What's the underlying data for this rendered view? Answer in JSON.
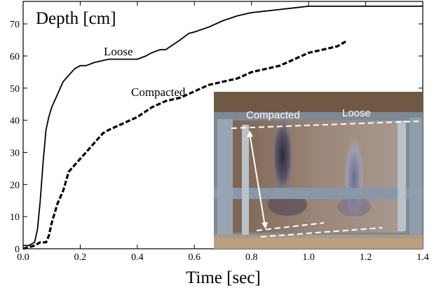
{
  "chart_data": {
    "type": "line",
    "xlabel": "Time [sec]",
    "ylabel": "Depth [cm]",
    "xlim": [
      0,
      1.4
    ],
    "ylim": [
      0,
      77
    ],
    "xticks": [
      "0.0",
      "0.2",
      "0.4",
      "0.6",
      "0.8",
      "1.0",
      "1.2",
      "1.4"
    ],
    "yticks": [
      "0",
      "10",
      "20",
      "30",
      "40",
      "50",
      "60",
      "70"
    ],
    "grid": false,
    "series": [
      {
        "name": "Loose",
        "style": "solid",
        "color": "#000000",
        "x": [
          0.0,
          0.02,
          0.04,
          0.05,
          0.06,
          0.07,
          0.08,
          0.09,
          0.1,
          0.12,
          0.14,
          0.16,
          0.18,
          0.2,
          0.22,
          0.25,
          0.3,
          0.35,
          0.4,
          0.43,
          0.45,
          0.48,
          0.5,
          0.55,
          0.58,
          0.6,
          0.65,
          0.7,
          0.75,
          0.8,
          0.85,
          0.9,
          0.95,
          1.0,
          1.1,
          1.2,
          1.3,
          1.4
        ],
        "y": [
          1,
          1,
          2,
          6,
          15,
          27,
          37,
          41,
          44,
          48,
          52,
          54,
          56,
          57,
          57,
          58,
          59,
          59,
          59,
          60,
          61,
          62,
          62,
          65,
          67,
          67.5,
          69,
          71,
          72.5,
          73.5,
          74,
          74.5,
          75,
          75.5,
          75.5,
          75.5,
          75.5,
          75.5
        ]
      },
      {
        "name": "Compacted",
        "style": "dashed",
        "color": "#000000",
        "x": [
          0.0,
          0.04,
          0.06,
          0.08,
          0.09,
          0.1,
          0.11,
          0.12,
          0.14,
          0.16,
          0.18,
          0.2,
          0.22,
          0.25,
          0.28,
          0.3,
          0.35,
          0.4,
          0.45,
          0.5,
          0.55,
          0.6,
          0.65,
          0.7,
          0.75,
          0.8,
          0.85,
          0.9,
          0.95,
          1.0,
          1.05,
          1.1,
          1.13
        ],
        "y": [
          0,
          1,
          2,
          2,
          4,
          8,
          11,
          14,
          18,
          24,
          26,
          28,
          30,
          33,
          36,
          37,
          39,
          41,
          44,
          46,
          47,
          49,
          51,
          52,
          53,
          55,
          56,
          57,
          59,
          61,
          62,
          63,
          64.5
        ]
      }
    ],
    "annotations": [
      "Loose",
      "Compacted"
    ],
    "inset_photo_labels": [
      "Compacted",
      "Loose"
    ]
  }
}
